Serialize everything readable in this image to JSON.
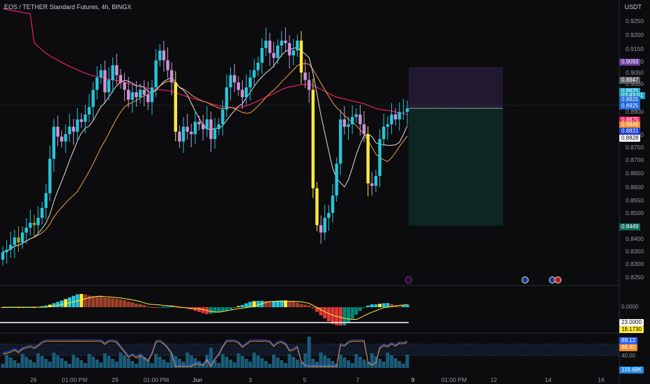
{
  "header": {
    "symbol_title": "EOS / TETHER Standard Futures, 4h, BINGX",
    "currency": "USDT"
  },
  "colors": {
    "bull": "#26c6da",
    "bear": "#ce93d8",
    "warn": "#ffeb3b",
    "dim": "#9e9d24",
    "ma_slow": "#e91e63",
    "ma_mid": "#f5a04a",
    "ma_fast": "#e0e0e0",
    "bg": "#0c0c0e"
  },
  "price_axis": {
    "ticks": [
      "0.9250",
      "0.9200",
      "0.9150",
      "0.9100",
      "0.9050",
      "0.9000",
      "0.8900",
      "0.8800",
      "0.8750",
      "0.8700",
      "0.8650",
      "0.8600",
      "0.8550",
      "0.8500",
      "0.8400",
      "0.8350",
      "0.8300",
      "0.8250"
    ]
  },
  "price_labels": [
    {
      "text": "0.9093",
      "bg": "#6b3fa0"
    },
    {
      "text": "0.8947",
      "bg": "#5b5e66"
    },
    {
      "text": "0.8925",
      "bg": "#22a6c4"
    },
    {
      "text": "03:43:01",
      "bg": "#22a6c4"
    },
    {
      "text": "0.8925",
      "bg": "#1e66d8"
    },
    {
      "text": "0.8925",
      "bg": "#1e66d8"
    },
    {
      "text": "0.8875",
      "bg": "#e91e63"
    },
    {
      "text": "0.8849",
      "bg": "#f08a24"
    },
    {
      "text": "0.8831",
      "bg": "#1a3fd0"
    },
    {
      "text": "0.8828",
      "bg": "#ffffff",
      "fg": "#000"
    },
    {
      "text": "0.8449",
      "bg": "#0f6b5f"
    }
  ],
  "osc1_labels": [
    {
      "text": "0.0000"
    },
    {
      "text": "23.0000",
      "bg": "#ffffff",
      "fg": "#000"
    },
    {
      "text": "18.1730",
      "bg": "#ffeb3b",
      "fg": "#000"
    }
  ],
  "osc2_labels": [
    {
      "text": "89.12",
      "bg": "#2962ff"
    },
    {
      "text": "88.80",
      "bg": "#f08a24"
    },
    {
      "text": "40.00"
    },
    {
      "text": "116.68K",
      "bg": "#1e88e5"
    }
  ],
  "time_axis": {
    "ticks": [
      "26",
      "01:00 PM",
      "29",
      "01:00 PM",
      "Jun",
      "3",
      "5",
      "7",
      "9",
      "01:00 PM",
      "12",
      "14",
      "16"
    ]
  },
  "chart_data": {
    "type": "candlestick",
    "title": "EOS / TETHER Standard Futures, 4h, BINGX",
    "timeframe": "4h",
    "ylim": [
      0.825,
      0.928
    ],
    "current_price": 0.8925,
    "position": {
      "entry": 0.8925,
      "target_top": 0.9093,
      "stop": 0.8449
    },
    "closes": [
      0.834,
      0.835,
      0.837,
      0.84,
      0.838,
      0.842,
      0.844,
      0.846,
      0.845,
      0.848,
      0.852,
      0.858,
      0.872,
      0.885,
      0.881,
      0.879,
      0.882,
      0.885,
      0.883,
      0.888,
      0.887,
      0.89,
      0.893,
      0.9,
      0.905,
      0.908,
      0.899,
      0.904,
      0.91,
      0.906,
      0.903,
      0.9,
      0.896,
      0.899,
      0.897,
      0.9,
      0.898,
      0.895,
      0.901,
      0.912,
      0.916,
      0.912,
      0.908,
      0.903,
      0.883,
      0.879,
      0.885,
      0.883,
      0.882,
      0.887,
      0.886,
      0.884,
      0.888,
      0.88,
      0.884,
      0.886,
      0.892,
      0.901,
      0.906,
      0.903,
      0.9,
      0.897,
      0.901,
      0.905,
      0.908,
      0.911,
      0.917,
      0.92,
      0.915,
      0.913,
      0.918,
      0.92,
      0.919,
      0.914,
      0.916,
      0.92,
      0.907,
      0.904,
      0.9,
      0.86,
      0.845,
      0.842,
      0.848,
      0.85,
      0.857,
      0.87,
      0.888,
      0.885,
      0.886,
      0.889,
      0.89,
      0.886,
      0.882,
      0.862,
      0.861,
      0.865,
      0.88,
      0.885,
      0.886,
      0.89,
      0.888,
      0.891,
      0.891,
      0.8925
    ]
  }
}
